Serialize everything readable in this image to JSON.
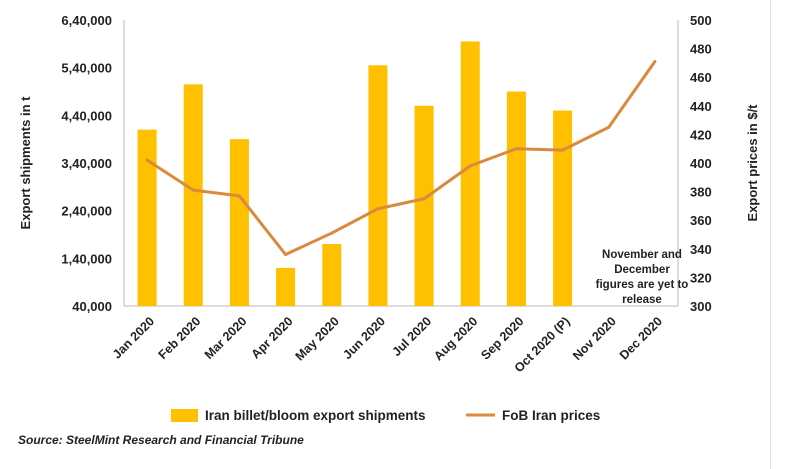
{
  "chart_data": {
    "type": "bar+line",
    "categories": [
      "Jan 2020",
      "Feb 2020",
      "Mar 2020",
      "Apr 2020",
      "May 2020",
      "Jun 2020",
      "Jul 2020",
      "Aug 2020",
      "Sep 2020",
      "Oct 2020 (P)",
      "Nov 2020",
      "Dec 2020"
    ],
    "series": [
      {
        "name": "Iran billet/bloom export shipments",
        "type": "bar",
        "axis": "left",
        "color": "#FFC000",
        "values": [
          410000,
          505000,
          390000,
          120000,
          170000,
          545000,
          460000,
          595000,
          490000,
          450000,
          null,
          null
        ]
      },
      {
        "name": "FoB Iran prices",
        "type": "line",
        "axis": "right",
        "color": "#D98A3C",
        "values": [
          402,
          381,
          377,
          336,
          351,
          368,
          375,
          398,
          410,
          409,
          425,
          471
        ]
      }
    ],
    "ylabel_left": "Export shipments in t",
    "ylabel_right": "Export prices in $/t",
    "y_left_ticks": [
      "40,000",
      "1,40,000",
      "2,40,000",
      "3,40,000",
      "4,40,000",
      "5,40,000",
      "6,40,000"
    ],
    "y_left_tick_values": [
      40000,
      140000,
      240000,
      340000,
      440000,
      540000,
      640000
    ],
    "y_left_range": [
      40000,
      640000
    ],
    "y_right_ticks": [
      "300",
      "320",
      "340",
      "360",
      "380",
      "400",
      "420",
      "440",
      "460",
      "480",
      "500"
    ],
    "y_right_tick_values": [
      300,
      320,
      340,
      360,
      380,
      400,
      420,
      440,
      460,
      480,
      500
    ],
    "y_right_range": [
      300,
      500
    ],
    "annotation": [
      "November and",
      "December",
      "figures are yet to",
      "release"
    ],
    "legend_position": "bottom",
    "grid": false
  },
  "source": "Source: SteelMint Research and Financial Tribune"
}
